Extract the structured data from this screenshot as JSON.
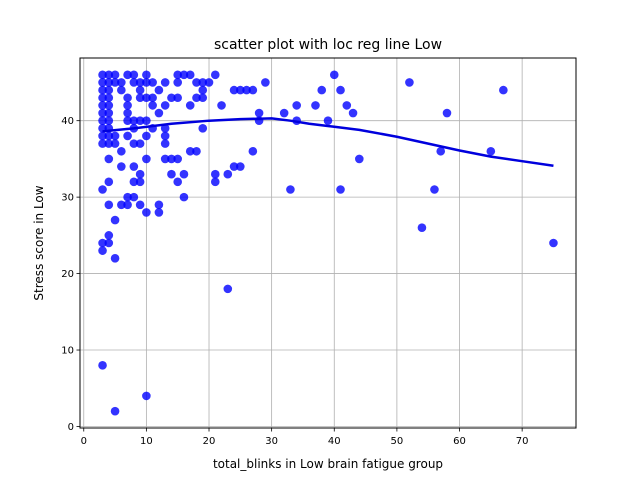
{
  "chart_data": {
    "type": "scatter",
    "title": "scatter plot with loc reg line Low",
    "xlabel": "total_blinks in Low brain fatigue group",
    "ylabel": "Stress score in Low",
    "xlim": [
      -0.6,
      78.6
    ],
    "ylim": [
      -0.2,
      48.2
    ],
    "xticks": [
      0,
      10,
      20,
      30,
      40,
      50,
      60,
      70
    ],
    "yticks": [
      0,
      10,
      20,
      30,
      40
    ],
    "grid": true,
    "colors": {
      "points": "#0000ff",
      "line": "#0000dd",
      "grid": "#b0b0b0"
    },
    "points": [
      [
        3,
        46
      ],
      [
        3,
        45
      ],
      [
        3,
        44
      ],
      [
        3,
        43
      ],
      [
        3,
        42
      ],
      [
        3,
        41
      ],
      [
        3,
        40
      ],
      [
        3,
        39
      ],
      [
        3,
        38
      ],
      [
        3,
        37
      ],
      [
        3,
        31
      ],
      [
        3,
        24
      ],
      [
        3,
        23
      ],
      [
        3,
        8
      ],
      [
        4,
        46
      ],
      [
        4,
        45
      ],
      [
        4,
        44
      ],
      [
        4,
        43
      ],
      [
        4,
        42
      ],
      [
        4,
        41
      ],
      [
        4,
        40
      ],
      [
        4,
        39
      ],
      [
        4,
        38
      ],
      [
        4,
        37
      ],
      [
        4,
        35
      ],
      [
        4,
        32
      ],
      [
        4,
        29
      ],
      [
        4,
        25
      ],
      [
        4,
        24
      ],
      [
        5,
        46
      ],
      [
        5,
        45
      ],
      [
        5,
        38
      ],
      [
        5,
        37
      ],
      [
        5,
        27
      ],
      [
        5,
        22
      ],
      [
        5,
        2
      ],
      [
        6,
        45
      ],
      [
        6,
        44
      ],
      [
        6,
        36
      ],
      [
        6,
        34
      ],
      [
        6,
        29
      ],
      [
        7,
        46
      ],
      [
        7,
        43
      ],
      [
        7,
        42
      ],
      [
        7,
        41
      ],
      [
        7,
        40
      ],
      [
        7,
        38
      ],
      [
        7,
        30
      ],
      [
        7,
        29
      ],
      [
        8,
        46
      ],
      [
        8,
        45
      ],
      [
        8,
        40
      ],
      [
        8,
        39
      ],
      [
        8,
        37
      ],
      [
        8,
        34
      ],
      [
        8,
        32
      ],
      [
        8,
        30
      ],
      [
        9,
        45
      ],
      [
        9,
        44
      ],
      [
        9,
        43
      ],
      [
        9,
        40
      ],
      [
        9,
        37
      ],
      [
        9,
        33
      ],
      [
        9,
        32
      ],
      [
        9,
        29
      ],
      [
        10,
        46
      ],
      [
        10,
        45
      ],
      [
        10,
        43
      ],
      [
        10,
        40
      ],
      [
        10,
        38
      ],
      [
        10,
        35
      ],
      [
        10,
        28
      ],
      [
        10,
        4
      ],
      [
        11,
        45
      ],
      [
        11,
        43
      ],
      [
        11,
        42
      ],
      [
        11,
        39
      ],
      [
        12,
        44
      ],
      [
        12,
        41
      ],
      [
        12,
        29
      ],
      [
        12,
        28
      ],
      [
        13,
        45
      ],
      [
        13,
        42
      ],
      [
        13,
        39
      ],
      [
        13,
        38
      ],
      [
        13,
        37
      ],
      [
        13,
        35
      ],
      [
        14,
        43
      ],
      [
        14,
        35
      ],
      [
        14,
        33
      ],
      [
        15,
        46
      ],
      [
        15,
        45
      ],
      [
        15,
        43
      ],
      [
        15,
        35
      ],
      [
        15,
        32
      ],
      [
        16,
        46
      ],
      [
        16,
        33
      ],
      [
        16,
        30
      ],
      [
        17,
        46
      ],
      [
        17,
        42
      ],
      [
        17,
        36
      ],
      [
        18,
        45
      ],
      [
        18,
        43
      ],
      [
        18,
        36
      ],
      [
        19,
        45
      ],
      [
        19,
        44
      ],
      [
        19,
        43
      ],
      [
        19,
        39
      ],
      [
        20,
        45
      ],
      [
        21,
        46
      ],
      [
        21,
        33
      ],
      [
        21,
        32
      ],
      [
        22,
        42
      ],
      [
        23,
        33
      ],
      [
        23,
        18
      ],
      [
        24,
        44
      ],
      [
        24,
        34
      ],
      [
        25,
        44
      ],
      [
        25,
        34
      ],
      [
        26,
        44
      ],
      [
        27,
        44
      ],
      [
        27,
        36
      ],
      [
        28,
        41
      ],
      [
        28,
        40
      ],
      [
        29,
        45
      ],
      [
        32,
        41
      ],
      [
        33,
        31
      ],
      [
        34,
        42
      ],
      [
        34,
        40
      ],
      [
        37,
        42
      ],
      [
        38,
        44
      ],
      [
        39,
        40
      ],
      [
        40,
        46
      ],
      [
        41,
        44
      ],
      [
        41,
        31
      ],
      [
        42,
        42
      ],
      [
        43,
        41
      ],
      [
        44,
        35
      ],
      [
        52,
        45
      ],
      [
        54,
        26
      ],
      [
        56,
        31
      ],
      [
        57,
        36
      ],
      [
        58,
        41
      ],
      [
        65,
        36
      ],
      [
        67,
        44
      ],
      [
        75,
        24
      ]
    ],
    "regression_line": [
      [
        3,
        38.6
      ],
      [
        8,
        39.0
      ],
      [
        14,
        39.6
      ],
      [
        20,
        40.0
      ],
      [
        25,
        40.2
      ],
      [
        30,
        40.3
      ],
      [
        33,
        40.0
      ],
      [
        36,
        39.6
      ],
      [
        40,
        39.2
      ],
      [
        44,
        38.8
      ],
      [
        50,
        37.9
      ],
      [
        55,
        37.0
      ],
      [
        60,
        36.1
      ],
      [
        65,
        35.3
      ],
      [
        70,
        34.7
      ],
      [
        75,
        34.1
      ]
    ]
  }
}
